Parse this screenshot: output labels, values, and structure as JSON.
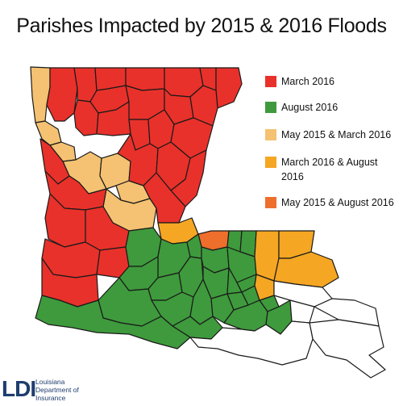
{
  "title": "Parishes Impacted by 2015 & 2016 Floods",
  "legend": [
    {
      "label": "March 2016",
      "color": "#e8312a"
    },
    {
      "label": "August 2016",
      "color": "#3e9a3c"
    },
    {
      "label": "May 2015 & March 2016",
      "color": "#f4c272"
    },
    {
      "label": "March 2016 & August 2016",
      "color": "#f5a623"
    },
    {
      "label": "May 2015 & August 2016",
      "color": "#ee6e2c"
    }
  ],
  "unaffected_color": "#ffffff",
  "logo": {
    "mark": "LDI",
    "line1": "Louisiana",
    "line2": "Department of",
    "line3": "Insurance"
  }
}
